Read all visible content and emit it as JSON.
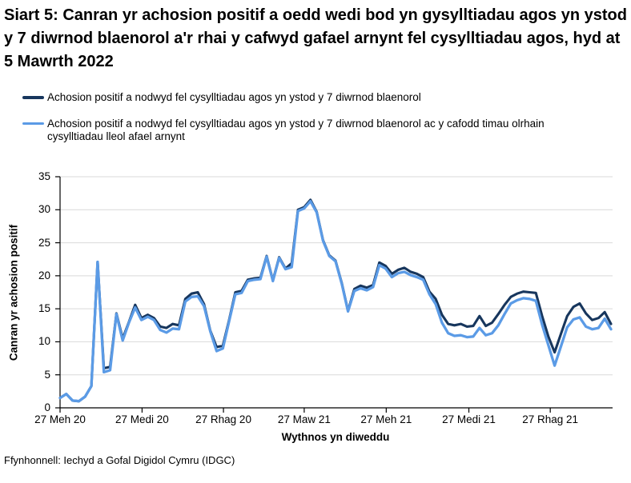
{
  "title": "Siart 5: Canran yr achosion positif a oedd wedi bod yn gysylltiadau agos yn ystod y 7 diwrnod blaenorol a'r rhai y cafwyd gafael arnynt fel cysylltiadau agos, hyd at 5 Mawrth 2022",
  "legend": [
    {
      "label": "Achosion positif a nodwyd fel cysylltiadau agos yn ystod y 7 diwrnod blaenorol",
      "color": "#17365d"
    },
    {
      "label": "Achosion positif a nodwyd fel cysylltiadau agos yn ystod y 7 diwrnod blaenorol ac y cafodd timau olrhain cysylltiadau lleol afael arnynt",
      "color": "#5b9be6"
    }
  ],
  "source": "Ffynhonnell: Iechyd a Gofal Digidol Cymru (IDGC)",
  "chart_data": {
    "type": "line",
    "title": "Siart 5: Canran yr achosion positif a oedd wedi bod yn gysylltiadau agos yn ystod y 7 diwrnod blaenorol a'r rhai y cafwyd gafael arnynt fel cysylltiadau agos, hyd at 5 Mawrth 2022",
    "ylabel": "Canran yr achosion positif",
    "xlabel": "Wythnos yn diweddu",
    "ylim": [
      0,
      35
    ],
    "y_ticks": [
      0,
      5,
      10,
      15,
      20,
      25,
      30,
      35
    ],
    "grid": "horizontal",
    "legend_position": "top-left",
    "n_weeks": 89,
    "x_tick_labels": [
      "27 Meh 20",
      "27 Medi 20",
      "27 Rhag 20",
      "27 Maw 21",
      "27 Meh 21",
      "27 Medi 21",
      "27 Rhag 21"
    ],
    "x_tick_weeks": [
      0,
      13.1,
      26.1,
      39,
      52.1,
      65.3,
      78.3
    ],
    "gridline_color": "#d9d9d9",
    "axis_color": "#000000",
    "series": [
      {
        "name": "Achosion positif a nodwyd fel cysylltiadau agos yn ystod y 7 diwrnod blaenorol",
        "color": "#17365d",
        "values": [
          1.5,
          2.1,
          1.1,
          1.0,
          1.7,
          3.3,
          22.1,
          6.0,
          6.2,
          14.3,
          10.5,
          13.0,
          15.6,
          13.6,
          14.1,
          13.6,
          12.3,
          12.1,
          12.7,
          12.5,
          16.5,
          17.3,
          17.5,
          15.7,
          11.7,
          9.2,
          9.4,
          13.3,
          17.5,
          17.7,
          19.4,
          19.6,
          19.7,
          23.0,
          19.3,
          22.8,
          21.1,
          21.9,
          30.0,
          30.4,
          31.5,
          29.7,
          25.4,
          23.1,
          22.3,
          18.9,
          14.7,
          18.0,
          18.5,
          18.2,
          18.6,
          22.0,
          21.5,
          20.3,
          20.9,
          21.2,
          20.6,
          20.3,
          19.8,
          17.6,
          16.5,
          14.1,
          12.7,
          12.5,
          12.7,
          12.3,
          12.4,
          13.9,
          12.4,
          12.9,
          14.2,
          15.6,
          16.8,
          17.3,
          17.6,
          17.5,
          17.4,
          13.9,
          10.8,
          8.4,
          11.2,
          13.9,
          15.3,
          15.8,
          14.3,
          13.3,
          13.6,
          14.5,
          12.7
        ]
      },
      {
        "name": "Achosion positif a nodwyd fel cysylltiadau agos yn ystod y 7 diwrnod blaenorol ac y cafodd timau olrhain cysylltiadau lleol afael arnynt",
        "color": "#5b9be6",
        "values": [
          1.5,
          2.1,
          1.1,
          1.0,
          1.7,
          3.3,
          22.1,
          5.4,
          5.7,
          14.2,
          10.2,
          12.9,
          15.2,
          13.3,
          13.8,
          13.3,
          11.8,
          11.4,
          12.0,
          11.9,
          16.1,
          16.8,
          16.9,
          15.4,
          11.6,
          8.6,
          9.0,
          13.1,
          17.2,
          17.4,
          19.2,
          19.4,
          19.5,
          22.9,
          19.2,
          22.7,
          21.0,
          21.3,
          29.8,
          30.2,
          31.3,
          29.6,
          25.3,
          23.0,
          22.2,
          18.8,
          14.6,
          17.7,
          18.1,
          17.8,
          18.3,
          21.6,
          21.1,
          19.8,
          20.4,
          20.6,
          20.1,
          19.8,
          19.4,
          17.2,
          15.7,
          12.9,
          11.3,
          10.9,
          11.0,
          10.7,
          10.8,
          12.1,
          11.0,
          11.3,
          12.5,
          14.2,
          15.8,
          16.3,
          16.6,
          16.5,
          16.2,
          12.6,
          9.5,
          6.4,
          9.3,
          12.2,
          13.4,
          13.7,
          12.3,
          11.9,
          12.1,
          13.5,
          11.9
        ]
      }
    ]
  }
}
